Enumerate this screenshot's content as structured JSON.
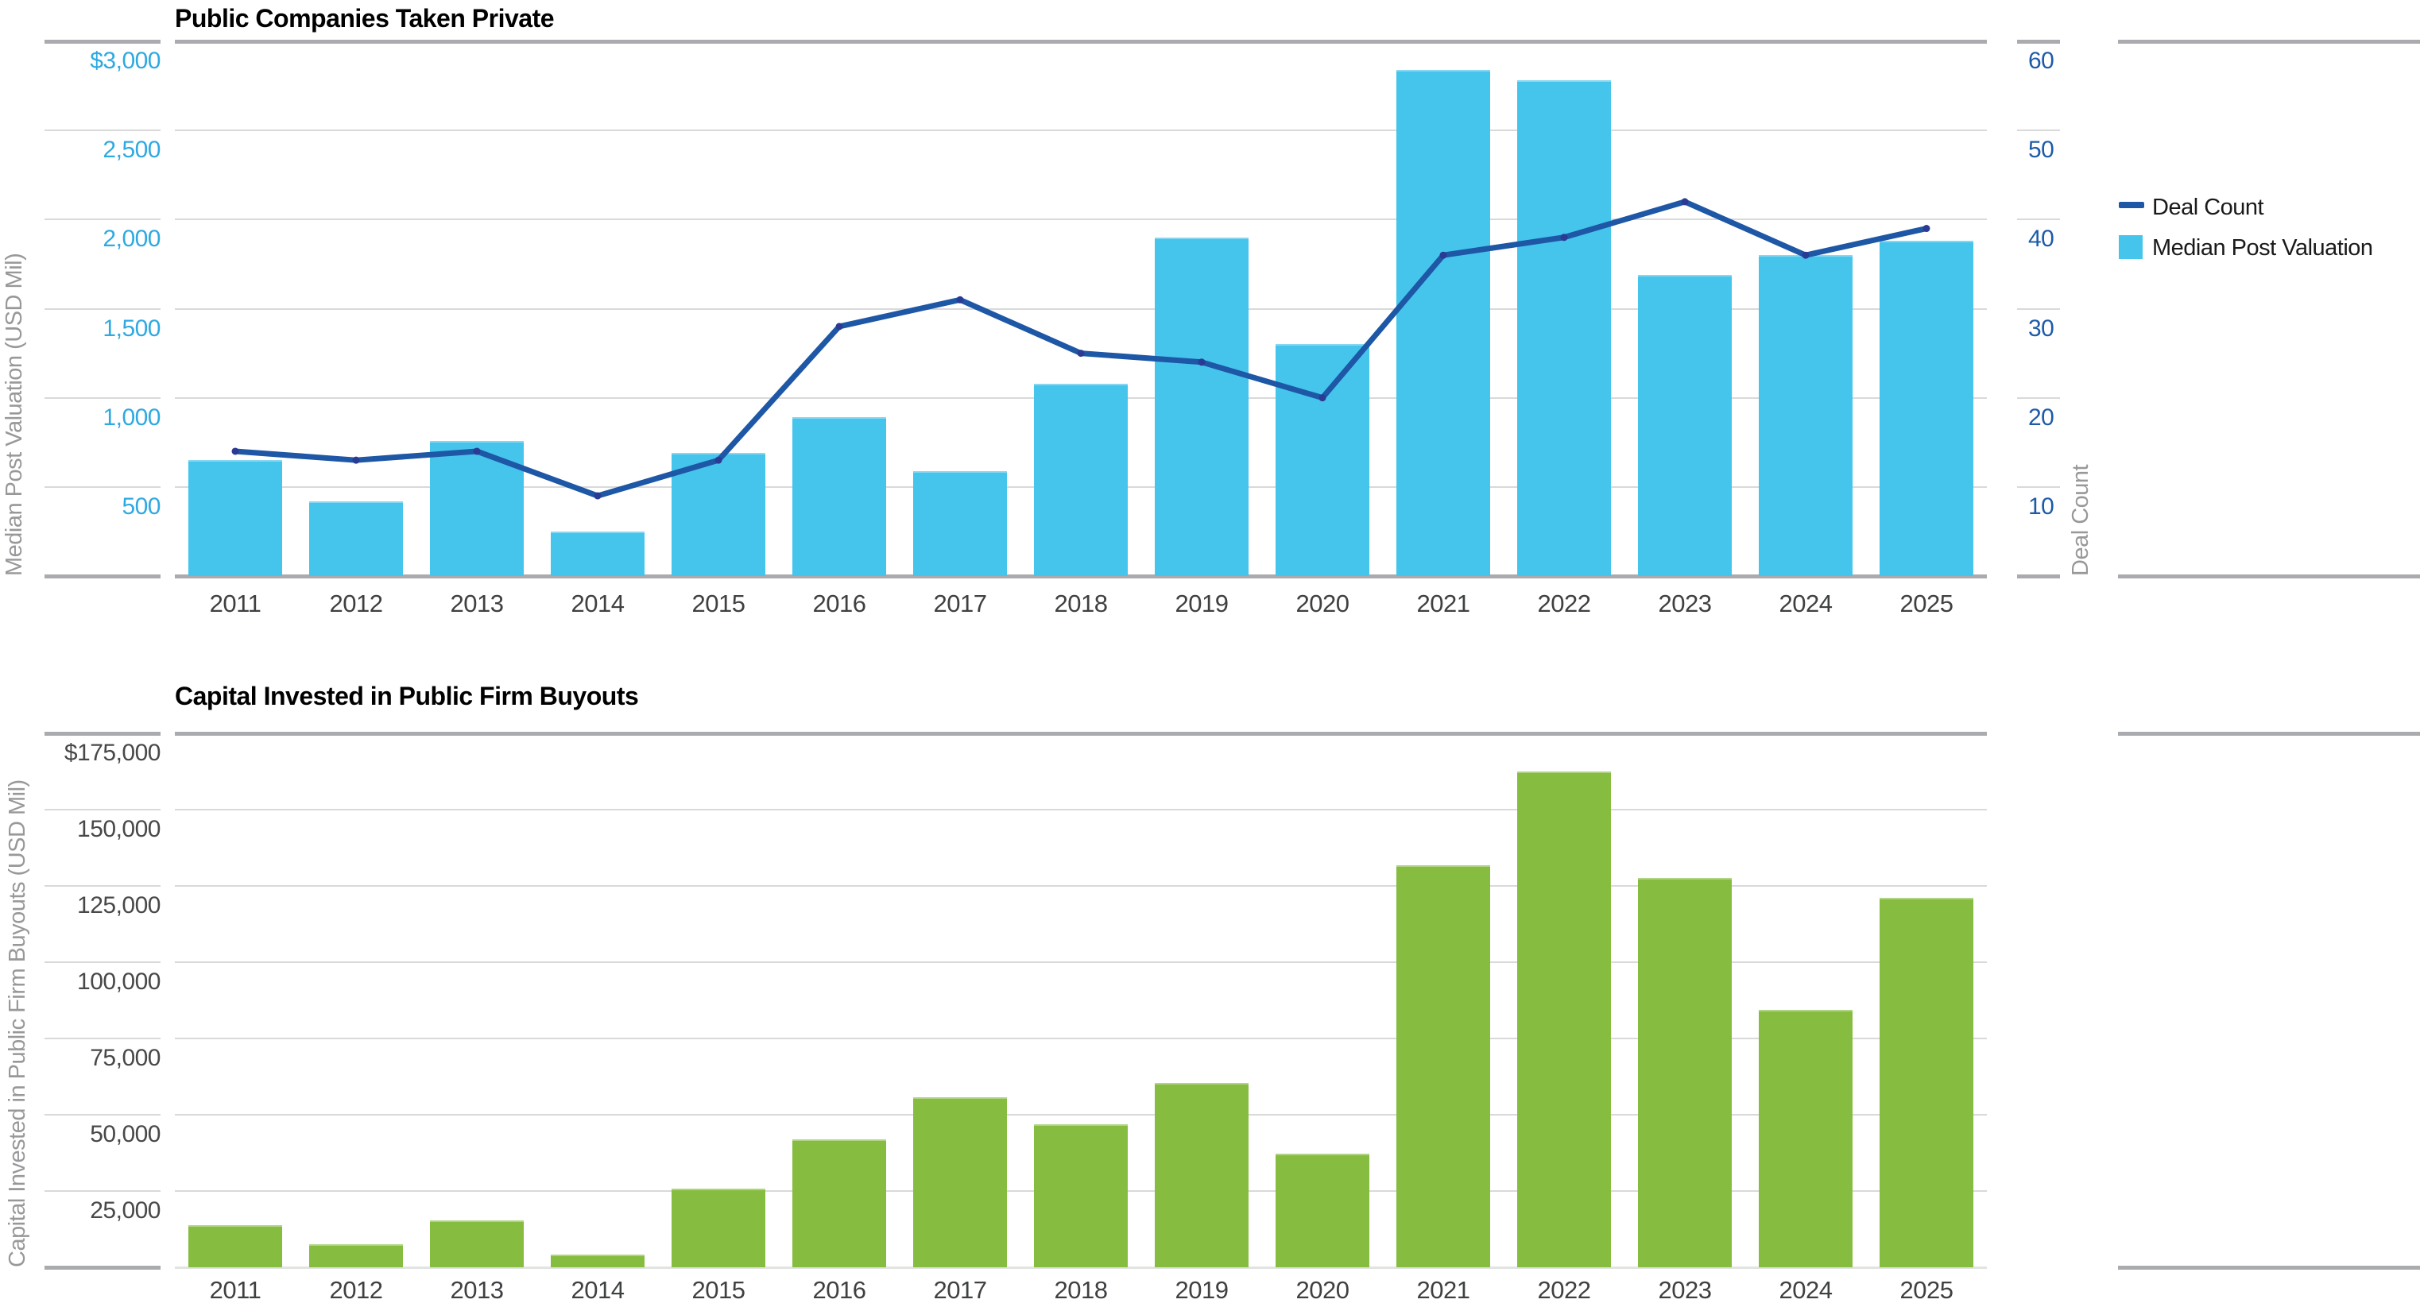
{
  "colors": {
    "bar_blue": "#45c4ec",
    "line_navy": "#1d57a5",
    "line_dot": "#2b3b94",
    "bar_green": "#86bd40",
    "tick_light_blue": "#2ea9e1",
    "tick_navy": "#1d5ba9",
    "tick_dark": "#48484a",
    "axis_title_gray": "#98989a",
    "grid_light": "#d9d9da",
    "grid_heavy": "#a9abae",
    "title_black": "#000000"
  },
  "chart_data": [
    {
      "type": "bar+line",
      "title": "Public Companies Taken Private",
      "categories": [
        "2011",
        "2012",
        "2013",
        "2014",
        "2015",
        "2016",
        "2017",
        "2018",
        "2019",
        "2020",
        "2021",
        "2022",
        "2023",
        "2024",
        "2025"
      ],
      "series": [
        {
          "name": "Median Post Valuation",
          "type": "bar",
          "axis": "left",
          "color": "#45c4ec",
          "values": [
            650,
            420,
            760,
            250,
            690,
            890,
            590,
            1080,
            1900,
            1300,
            2840,
            2780,
            1690,
            1800,
            1880
          ]
        },
        {
          "name": "Deal Count",
          "type": "line",
          "axis": "right",
          "color": "#1d57a5",
          "values": [
            14,
            13,
            14,
            9,
            13,
            28,
            31,
            25,
            24,
            20,
            36,
            38,
            42,
            36,
            39
          ]
        }
      ],
      "left_axis": {
        "title": "Median Post Valuation (USD Mil)",
        "ticks": [
          "$3,000",
          "2,500",
          "2,000",
          "1,500",
          "1,000",
          "500"
        ],
        "min": 0,
        "max": 3000
      },
      "right_axis": {
        "title": "Deal Count",
        "ticks": [
          "60",
          "50",
          "40",
          "30",
          "20",
          "10"
        ],
        "min": 0,
        "max": 60
      },
      "legend": [
        {
          "label": "Deal Count",
          "swatch": "line"
        },
        {
          "label": "Median Post Valuation",
          "swatch": "square"
        }
      ],
      "grid": "horizontal-on",
      "legend_position": "right"
    },
    {
      "type": "bar",
      "title": "Capital Invested in Public Firm Buyouts",
      "categories": [
        "2011",
        "2012",
        "2013",
        "2014",
        "2015",
        "2016",
        "2017",
        "2018",
        "2019",
        "2020",
        "2021",
        "2022",
        "2023",
        "2024",
        "2025"
      ],
      "series": [
        {
          "name": "Capital Invested",
          "type": "bar",
          "axis": "left",
          "color": "#86bd40",
          "values": [
            13700,
            7500,
            15400,
            4100,
            25800,
            42000,
            55700,
            47000,
            60500,
            37200,
            131700,
            162500,
            127500,
            84500,
            121000
          ]
        }
      ],
      "left_axis": {
        "title": "Capital Invested in Public Firm Buyouts (USD Mil)",
        "ticks": [
          "$175,000",
          "150,000",
          "125,000",
          "100,000",
          "75,000",
          "50,000",
          "25,000"
        ],
        "min": 0,
        "max": 175000
      },
      "grid": "horizontal-on",
      "legend_position": "none"
    }
  ]
}
